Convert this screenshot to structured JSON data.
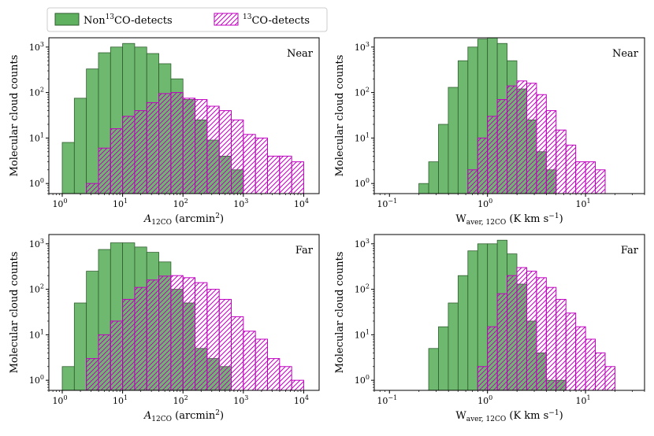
{
  "colors": {
    "non_detect_fill": "#5fb05f",
    "non_detect_edge": "#2e5e2e",
    "detect_edge": "#bf00bf"
  },
  "legend": {
    "non_detect_prefix": "Non",
    "non_detect_sup": "13",
    "non_detect_suffix": "CO-detects",
    "detect_sup": "13",
    "detect_suffix": "CO-detects"
  },
  "chart_data": [
    {
      "type": "bar",
      "panel": "top-left",
      "label": "Near",
      "ylabel": "Molecular cloud counts",
      "xlabel_main": "A",
      "xlabel_sub": "12CO",
      "xlabel_unit": "(arcmin",
      "xlabel_unit_sup": "2",
      "xlabel_close": ")",
      "x_scale": "log",
      "y_scale": "log",
      "xlim": [
        0.6,
        18000
      ],
      "ylim": [
        0.6,
        1600
      ],
      "xticks": [
        "10^0",
        "10^1",
        "10^2",
        "10^3",
        "10^4"
      ],
      "yticks": [
        "10^0",
        "10^1",
        "10^2",
        "10^3"
      ],
      "bin_edges_log10": [
        0.0,
        0.2,
        0.4,
        0.6,
        0.8,
        1.0,
        1.2,
        1.4,
        1.6,
        1.8,
        2.0,
        2.2,
        2.4,
        2.6,
        2.8,
        3.0,
        3.2,
        3.4,
        3.6,
        3.8,
        4.0
      ],
      "series": [
        {
          "name": "Non13CO-detects",
          "values": [
            8,
            75,
            330,
            750,
            1000,
            1200,
            1000,
            720,
            430,
            200,
            70,
            25,
            9,
            4,
            2,
            0,
            0,
            0,
            0,
            0
          ]
        },
        {
          "name": "13CO-detects",
          "values": [
            0,
            0,
            1,
            6,
            16,
            30,
            40,
            60,
            95,
            100,
            75,
            70,
            50,
            40,
            25,
            12,
            10,
            4,
            4,
            3
          ]
        }
      ]
    },
    {
      "type": "bar",
      "panel": "top-right",
      "label": "Near",
      "ylabel": "Molecular cloud counts",
      "xlabel_main": "W",
      "xlabel_sub": "aver, 12CO",
      "xlabel_unit": "(K km s",
      "xlabel_unit_sup": "−1",
      "xlabel_close": ")",
      "x_scale": "log",
      "y_scale": "log",
      "xlim": [
        0.07,
        40
      ],
      "ylim": [
        0.6,
        1600
      ],
      "xticks": [
        "10^-1",
        "10^0",
        "10^1"
      ],
      "yticks": [
        "10^0",
        "10^1",
        "10^2",
        "10^3"
      ],
      "bin_edges_log10": [
        -0.7,
        -0.6,
        -0.5,
        -0.4,
        -0.3,
        -0.2,
        -0.1,
        0.0,
        0.1,
        0.2,
        0.3,
        0.4,
        0.5,
        0.6,
        0.7,
        0.8,
        0.9,
        1.0,
        1.1,
        1.2
      ],
      "series": [
        {
          "name": "Non13CO-detects",
          "values": [
            1,
            3,
            20,
            130,
            500,
            1000,
            1500,
            1600,
            1200,
            500,
            120,
            25,
            5,
            2,
            0,
            0,
            0,
            0,
            0
          ]
        },
        {
          "name": "13CO-detects",
          "values": [
            0,
            0,
            0,
            0,
            0,
            2,
            10,
            30,
            70,
            140,
            180,
            160,
            90,
            40,
            15,
            7,
            3,
            3,
            2
          ]
        }
      ]
    },
    {
      "type": "bar",
      "panel": "bottom-left",
      "label": "Far",
      "ylabel": "Molecular cloud counts",
      "xlabel_main": "A",
      "xlabel_sub": "12CO",
      "xlabel_unit": "(arcmin",
      "xlabel_unit_sup": "2",
      "xlabel_close": ")",
      "x_scale": "log",
      "y_scale": "log",
      "xlim": [
        0.6,
        18000
      ],
      "ylim": [
        0.6,
        1600
      ],
      "xticks": [
        "10^0",
        "10^1",
        "10^2",
        "10^3",
        "10^4"
      ],
      "yticks": [
        "10^0",
        "10^1",
        "10^2",
        "10^3"
      ],
      "bin_edges_log10": [
        0.0,
        0.2,
        0.4,
        0.6,
        0.8,
        1.0,
        1.2,
        1.4,
        1.6,
        1.8,
        2.0,
        2.2,
        2.4,
        2.6,
        2.8,
        3.0,
        3.2,
        3.4,
        3.6,
        3.8,
        4.0
      ],
      "series": [
        {
          "name": "Non13CO-detects",
          "values": [
            2,
            50,
            250,
            750,
            1050,
            1050,
            850,
            650,
            400,
            100,
            50,
            5,
            3,
            2,
            0,
            0,
            0,
            0,
            0,
            0
          ]
        },
        {
          "name": "13CO-detects",
          "values": [
            0,
            0,
            3,
            10,
            20,
            60,
            110,
            160,
            195,
            200,
            180,
            140,
            100,
            60,
            25,
            12,
            8,
            3,
            2,
            1
          ]
        }
      ]
    },
    {
      "type": "bar",
      "panel": "bottom-right",
      "label": "Far",
      "ylabel": "Molecular cloud counts",
      "xlabel_main": "W",
      "xlabel_sub": "aver, 12CO",
      "xlabel_unit": "(K km s",
      "xlabel_unit_sup": "−1",
      "xlabel_close": ")",
      "x_scale": "log",
      "y_scale": "log",
      "xlim": [
        0.07,
        40
      ],
      "ylim": [
        0.6,
        1600
      ],
      "xticks": [
        "10^-1",
        "10^0",
        "10^1"
      ],
      "yticks": [
        "10^0",
        "10^1",
        "10^2",
        "10^3"
      ],
      "bin_edges_log10": [
        -0.6,
        -0.5,
        -0.4,
        -0.3,
        -0.2,
        -0.1,
        0.0,
        0.1,
        0.2,
        0.3,
        0.4,
        0.5,
        0.6,
        0.7,
        0.8,
        0.9,
        1.0,
        1.1,
        1.2,
        1.3
      ],
      "series": [
        {
          "name": "Non13CO-detects",
          "values": [
            5,
            15,
            50,
            200,
            700,
            1000,
            1000,
            1200,
            600,
            130,
            20,
            4,
            1,
            1,
            0,
            0,
            0,
            0,
            0
          ]
        },
        {
          "name": "13CO-detects",
          "values": [
            0,
            0,
            0,
            0,
            0,
            2,
            15,
            80,
            200,
            300,
            250,
            180,
            110,
            60,
            30,
            15,
            8,
            4,
            2
          ]
        }
      ]
    }
  ]
}
